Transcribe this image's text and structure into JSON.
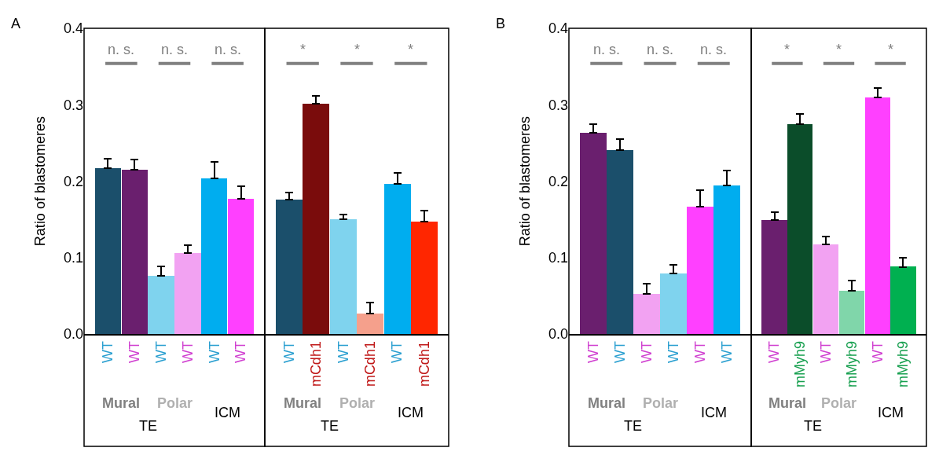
{
  "chart_data": [
    {
      "type": "bar",
      "title": "A",
      "ylabel": "Ratio of blastomeres",
      "categories": [
        "WT",
        "WT",
        "WT",
        "WT",
        "WT",
        "WT"
      ],
      "values": [
        0.217,
        0.215,
        0.076,
        0.106,
        0.204,
        0.177
      ],
      "colors": [
        "#1b4f6b",
        "#6a1f6e",
        "#7fd3ee",
        "#f2a2f2",
        "#00adef",
        "#ff40ff"
      ],
      "errors": [
        [
          0.217,
          0.229
        ],
        [
          0.215,
          0.228
        ],
        [
          0.076,
          0.089
        ],
        [
          0.106,
          0.116
        ],
        [
          0.204,
          0.225
        ],
        [
          0.177,
          0.193
        ]
      ],
      "ylim": [
        0,
        0.4
      ],
      "yticks": [
        {
          "value": 0,
          "label": "0.0"
        },
        0.1,
        0.2,
        0.3,
        0.4
      ],
      "annotations": [
        "n. s.",
        "n. s.",
        "n. s.",
        "Mural",
        "Polar",
        "ICM",
        "TE"
      ]
    },
    {
      "type": "bar",
      "categories": [
        "WT",
        "mCdh1",
        "WT",
        "mCdh1",
        "WT",
        "mCdh1"
      ],
      "values": [
        0.176,
        0.301,
        0.15,
        0.027,
        0.196,
        0.147
      ],
      "colors": [
        "#1b4f6b",
        "#7a0c0c",
        "#7fd3ee",
        "#f5a08c",
        "#00adef",
        "#ff2600"
      ],
      "errors": [
        [
          0.176,
          0.185
        ],
        [
          0.301,
          0.312
        ],
        [
          0.15,
          0.156
        ],
        [
          0.027,
          0.041
        ],
        [
          0.196,
          0.211
        ],
        [
          0.147,
          0.162
        ]
      ],
      "ylim": [
        0,
        0.4
      ],
      "tick_labels": "x",
      "annotations": [
        "*",
        "*",
        "*",
        "Mural",
        "Polar",
        "ICM",
        "TE"
      ]
    },
    {
      "type": "bar",
      "title": "B",
      "ylabel": "Ratio of blastomeres",
      "categories": [
        "WT",
        "WT",
        "WT",
        "WT",
        "WT",
        "WT"
      ],
      "values": [
        0.263,
        0.241,
        0.053,
        0.079,
        0.167,
        0.194
      ],
      "colors": [
        "#6a1f6e",
        "#1b4f6b",
        "#f2a2f2",
        "#7fd3ee",
        "#ff40ff",
        "#00adef"
      ],
      "errors": [
        [
          0.263,
          0.275
        ],
        [
          0.241,
          0.255
        ],
        [
          0.053,
          0.066
        ],
        [
          0.079,
          0.091
        ],
        [
          0.167,
          0.188
        ],
        [
          0.194,
          0.214
        ]
      ],
      "ylim": [
        0,
        0.4
      ],
      "yticks": [
        {
          "value": 0,
          "label": "0.0"
        },
        0.1,
        0.2,
        0.3,
        0.4
      ],
      "annotations": [
        "n. s.",
        "n. s.",
        "n. s.",
        "Mural",
        "Polar",
        "ICM",
        "TE"
      ]
    },
    {
      "type": "bar",
      "categories": [
        "WT",
        "mMyh9",
        "WT",
        "mMyh9",
        "WT",
        "mMyh9"
      ],
      "values": [
        0.149,
        0.275,
        0.117,
        0.057,
        0.31,
        0.088
      ],
      "colors": [
        "#6a1f6e",
        "#0b4d2a",
        "#f2a2f2",
        "#80d6aa",
        "#ff40ff",
        "#00b050"
      ],
      "errors": [
        [
          0.149,
          0.16
        ],
        [
          0.275,
          0.288
        ],
        [
          0.117,
          0.128
        ],
        [
          0.057,
          0.07
        ],
        [
          0.31,
          0.322
        ],
        [
          0.088,
          0.1
        ]
      ],
      "ylim": [
        0,
        0.4
      ],
      "tick_labels": "x",
      "annotations": [
        "*",
        "*",
        "*",
        "Mural",
        "Polar",
        "ICM",
        "TE"
      ]
    }
  ]
}
